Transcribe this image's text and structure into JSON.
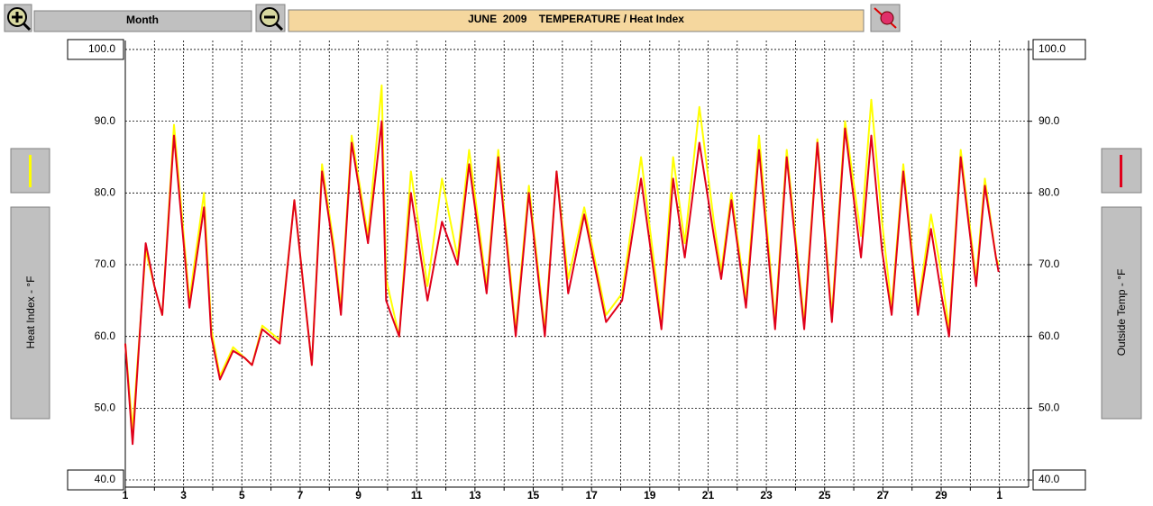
{
  "toolbar": {
    "period": "Month"
  },
  "chart_data": {
    "type": "line",
    "title": "JUNE  2009    TEMPERATURE / Heat Index",
    "x": [
      1.0,
      1.25,
      1.7,
      2.0,
      2.27,
      2.67,
      3.2,
      3.7,
      3.95,
      4.25,
      4.7,
      5.1,
      5.35,
      5.7,
      6.3,
      6.8,
      7.4,
      7.75,
      8.15,
      8.4,
      8.77,
      9.33,
      9.8,
      9.95,
      10.4,
      10.8,
      11.37,
      11.87,
      12.4,
      12.8,
      13.4,
      13.8,
      14.4,
      14.85,
      15.4,
      15.8,
      16.2,
      16.75,
      17.5,
      18.05,
      18.7,
      19.4,
      19.8,
      20.2,
      20.7,
      21.2,
      21.45,
      21.8,
      22.3,
      22.75,
      23.3,
      23.7,
      24.3,
      24.75,
      25.25,
      25.7,
      26.25,
      26.6,
      26.97,
      27.3,
      27.7,
      28.2,
      28.65,
      29.0,
      29.27,
      29.67,
      30.2,
      30.5,
      30.88,
      30.97
    ],
    "series": [
      {
        "name": "Heat Index - °F",
        "color": "#ffff00",
        "values": [
          59,
          47,
          72,
          67,
          63,
          89.5,
          65,
          80,
          61,
          54.5,
          58.5,
          57,
          56,
          61.5,
          59.5,
          79,
          56,
          84,
          73,
          64,
          88,
          74,
          95,
          68,
          60,
          83,
          67,
          82,
          71,
          86,
          67,
          86,
          61,
          81,
          61,
          83,
          68,
          78,
          63,
          66,
          85,
          62,
          85,
          73,
          92,
          76,
          69,
          80,
          65,
          88,
          62,
          86,
          62,
          87.5,
          63,
          90,
          74,
          93,
          76,
          64,
          84,
          64,
          77,
          69,
          61,
          86,
          68,
          82,
          71,
          70
        ]
      },
      {
        "name": "Outside Temp - °F",
        "color": "#e0001b",
        "axis": "y2",
        "values": [
          59,
          45,
          73,
          67,
          63,
          88,
          64,
          78,
          60,
          54,
          58,
          57,
          56,
          61,
          59,
          79,
          56,
          83,
          72,
          63,
          87,
          73,
          90,
          65,
          60,
          80,
          65,
          76,
          70,
          84,
          66,
          85,
          60,
          80,
          60,
          83,
          66,
          77,
          62,
          65,
          82,
          61,
          82,
          71,
          87,
          74,
          68,
          79,
          64,
          86,
          61,
          85,
          61,
          87,
          62,
          89,
          71,
          88,
          72,
          63,
          83,
          63,
          75,
          66,
          60,
          85,
          67,
          81,
          71,
          69
        ]
      }
    ],
    "xlim": [
      1,
      32
    ],
    "xticks": [
      1,
      3,
      5,
      7,
      9,
      11,
      13,
      15,
      17,
      19,
      21,
      23,
      25,
      27,
      29,
      {
        "value": 31,
        "label": "1"
      }
    ],
    "x_minor_ticks": [
      2,
      4,
      6,
      8,
      10,
      12,
      14,
      16,
      18,
      20,
      22,
      24,
      26,
      28,
      30
    ],
    "ylim": [
      39,
      101.25
    ],
    "yticks": [
      {
        "value": 40,
        "label": "40.0"
      },
      {
        "value": 50,
        "label": "50.0"
      },
      {
        "value": 60,
        "label": "60.0"
      },
      {
        "value": 70,
        "label": "70.0"
      },
      {
        "value": 80,
        "label": "80.0"
      },
      {
        "value": 90,
        "label": "90.0"
      },
      {
        "value": 100,
        "label": "100.0"
      }
    ],
    "y2lim": [
      39,
      101.25
    ],
    "y2ticks": [
      {
        "value": 40,
        "label": "40.0"
      },
      {
        "value": 50,
        "label": "50.0"
      },
      {
        "value": 60,
        "label": "60.0"
      },
      {
        "value": 70,
        "label": "70.0"
      },
      {
        "value": 80,
        "label": "80.0"
      },
      {
        "value": 90,
        "label": "90.0"
      },
      {
        "value": 100,
        "label": "100.0"
      }
    ],
    "grid": true
  }
}
